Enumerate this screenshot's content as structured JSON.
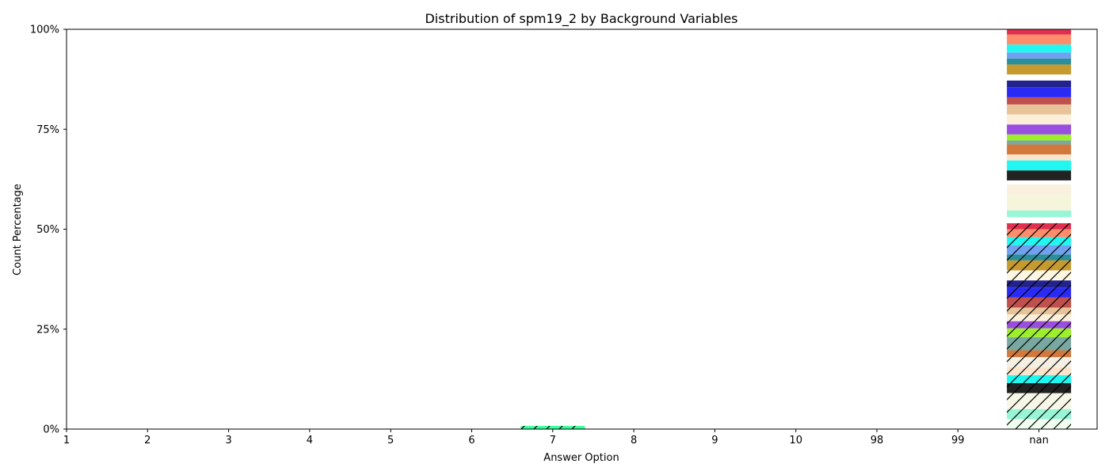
{
  "chart_data": {
    "type": "bar",
    "stacked": true,
    "title": "Distribution of spm19_2 by Background Variables",
    "xlabel": "Answer Option",
    "ylabel": "Count Percentage",
    "categories": [
      "1",
      "2",
      "3",
      "4",
      "5",
      "6",
      "7",
      "8",
      "9",
      "10",
      "98",
      "99",
      "nan"
    ],
    "y_ticks": [
      0,
      25,
      50,
      75,
      100
    ],
    "y_tick_labels": [
      "0%",
      "25%",
      "50%",
      "75%",
      "100%"
    ],
    "ylim": [
      0,
      100
    ],
    "grid": false,
    "legend": "none",
    "segments": [
      {
        "category": "7",
        "value": 0.8,
        "color": "#3dff9e",
        "hatch": true
      },
      {
        "category": "nan",
        "value": 2.5,
        "color": "#f0fff0",
        "hatch": true
      },
      {
        "category": "nan",
        "value": 2.5,
        "color": "#98f5d6",
        "hatch": true
      },
      {
        "category": "nan",
        "value": 4.0,
        "color": "#f7f7e8",
        "hatch": true
      },
      {
        "category": "nan",
        "value": 2.5,
        "color": "#222222",
        "hatch": true
      },
      {
        "category": "nan",
        "value": 2.0,
        "color": "#1ff7f0",
        "hatch": true
      },
      {
        "category": "nan",
        "value": 2.0,
        "color": "#fbe4cc",
        "hatch": true
      },
      {
        "category": "nan",
        "value": 2.5,
        "color": "#f5f0e3",
        "hatch": true
      },
      {
        "category": "nan",
        "value": 1.7,
        "color": "#d2783c",
        "hatch": true
      },
      {
        "category": "nan",
        "value": 3.3,
        "color": "#78a8a0",
        "hatch": true
      },
      {
        "category": "nan",
        "value": 2.2,
        "color": "#9cf02a",
        "hatch": true
      },
      {
        "category": "nan",
        "value": 1.8,
        "color": "#9a4ee0",
        "hatch": true
      },
      {
        "category": "nan",
        "value": 1.7,
        "color": "#fbefd9",
        "hatch": true
      },
      {
        "category": "nan",
        "value": 1.7,
        "color": "#e8c39a",
        "hatch": true
      },
      {
        "category": "nan",
        "value": 2.5,
        "color": "#c0504d",
        "hatch": true
      },
      {
        "category": "nan",
        "value": 2.5,
        "color": "#2a2af5",
        "hatch": true
      },
      {
        "category": "nan",
        "value": 1.8,
        "color": "#23238f",
        "hatch": true
      },
      {
        "category": "nan",
        "value": 2.5,
        "color": "#fdf6e0",
        "hatch": true
      },
      {
        "category": "nan",
        "value": 2.5,
        "color": "#c79a2f",
        "hatch": true
      },
      {
        "category": "nan",
        "value": 1.5,
        "color": "#2a8f9a",
        "hatch": true
      },
      {
        "category": "nan",
        "value": 2.3,
        "color": "#70a0f0",
        "hatch": true
      },
      {
        "category": "nan",
        "value": 2.0,
        "color": "#1ff7f0",
        "hatch": true
      },
      {
        "category": "nan",
        "value": 2.0,
        "color": "#ff8c6a",
        "hatch": true
      },
      {
        "category": "nan",
        "value": 1.5,
        "color": "#e0304f",
        "hatch": true
      },
      {
        "category": "nan",
        "value": 1.5,
        "color": "#ffffff",
        "hatch": false
      },
      {
        "category": "nan",
        "value": 1.7,
        "color": "#98f5d6",
        "hatch": false
      },
      {
        "category": "nan",
        "value": 4.0,
        "color": "#f5f5dc",
        "hatch": false
      },
      {
        "category": "nan",
        "value": 2.5,
        "color": "#faf0e0",
        "hatch": false
      },
      {
        "category": "nan",
        "value": 1.0,
        "color": "#ffffff",
        "hatch": false
      },
      {
        "category": "nan",
        "value": 2.5,
        "color": "#222222",
        "hatch": false
      },
      {
        "category": "nan",
        "value": 2.5,
        "color": "#1ff7f0",
        "hatch": false
      },
      {
        "category": "nan",
        "value": 1.5,
        "color": "#fbe4cc",
        "hatch": false
      },
      {
        "category": "nan",
        "value": 2.5,
        "color": "#d2783c",
        "hatch": false
      },
      {
        "category": "nan",
        "value": 1.0,
        "color": "#78a8a0",
        "hatch": false
      },
      {
        "category": "nan",
        "value": 1.5,
        "color": "#9cf02a",
        "hatch": false
      },
      {
        "category": "nan",
        "value": 2.5,
        "color": "#9a4ee0",
        "hatch": false
      },
      {
        "category": "nan",
        "value": 2.5,
        "color": "#fbefd9",
        "hatch": false
      },
      {
        "category": "nan",
        "value": 2.5,
        "color": "#e8c39a",
        "hatch": false
      },
      {
        "category": "nan",
        "value": 1.8,
        "color": "#c0504d",
        "hatch": false
      },
      {
        "category": "nan",
        "value": 2.5,
        "color": "#2a2af5",
        "hatch": false
      },
      {
        "category": "nan",
        "value": 1.7,
        "color": "#23238f",
        "hatch": false
      },
      {
        "category": "nan",
        "value": 1.5,
        "color": "#ffffff",
        "hatch": false
      },
      {
        "category": "nan",
        "value": 2.5,
        "color": "#c79a2f",
        "hatch": false
      },
      {
        "category": "nan",
        "value": 1.5,
        "color": "#2a8f9a",
        "hatch": false
      },
      {
        "category": "nan",
        "value": 1.5,
        "color": "#70a0f0",
        "hatch": false
      },
      {
        "category": "nan",
        "value": 2.0,
        "color": "#1ff7f0",
        "hatch": false
      },
      {
        "category": "nan",
        "value": 2.5,
        "color": "#ff8c6a",
        "hatch": false
      },
      {
        "category": "nan",
        "value": 2.5,
        "color": "#e0304f",
        "hatch": false
      }
    ]
  }
}
